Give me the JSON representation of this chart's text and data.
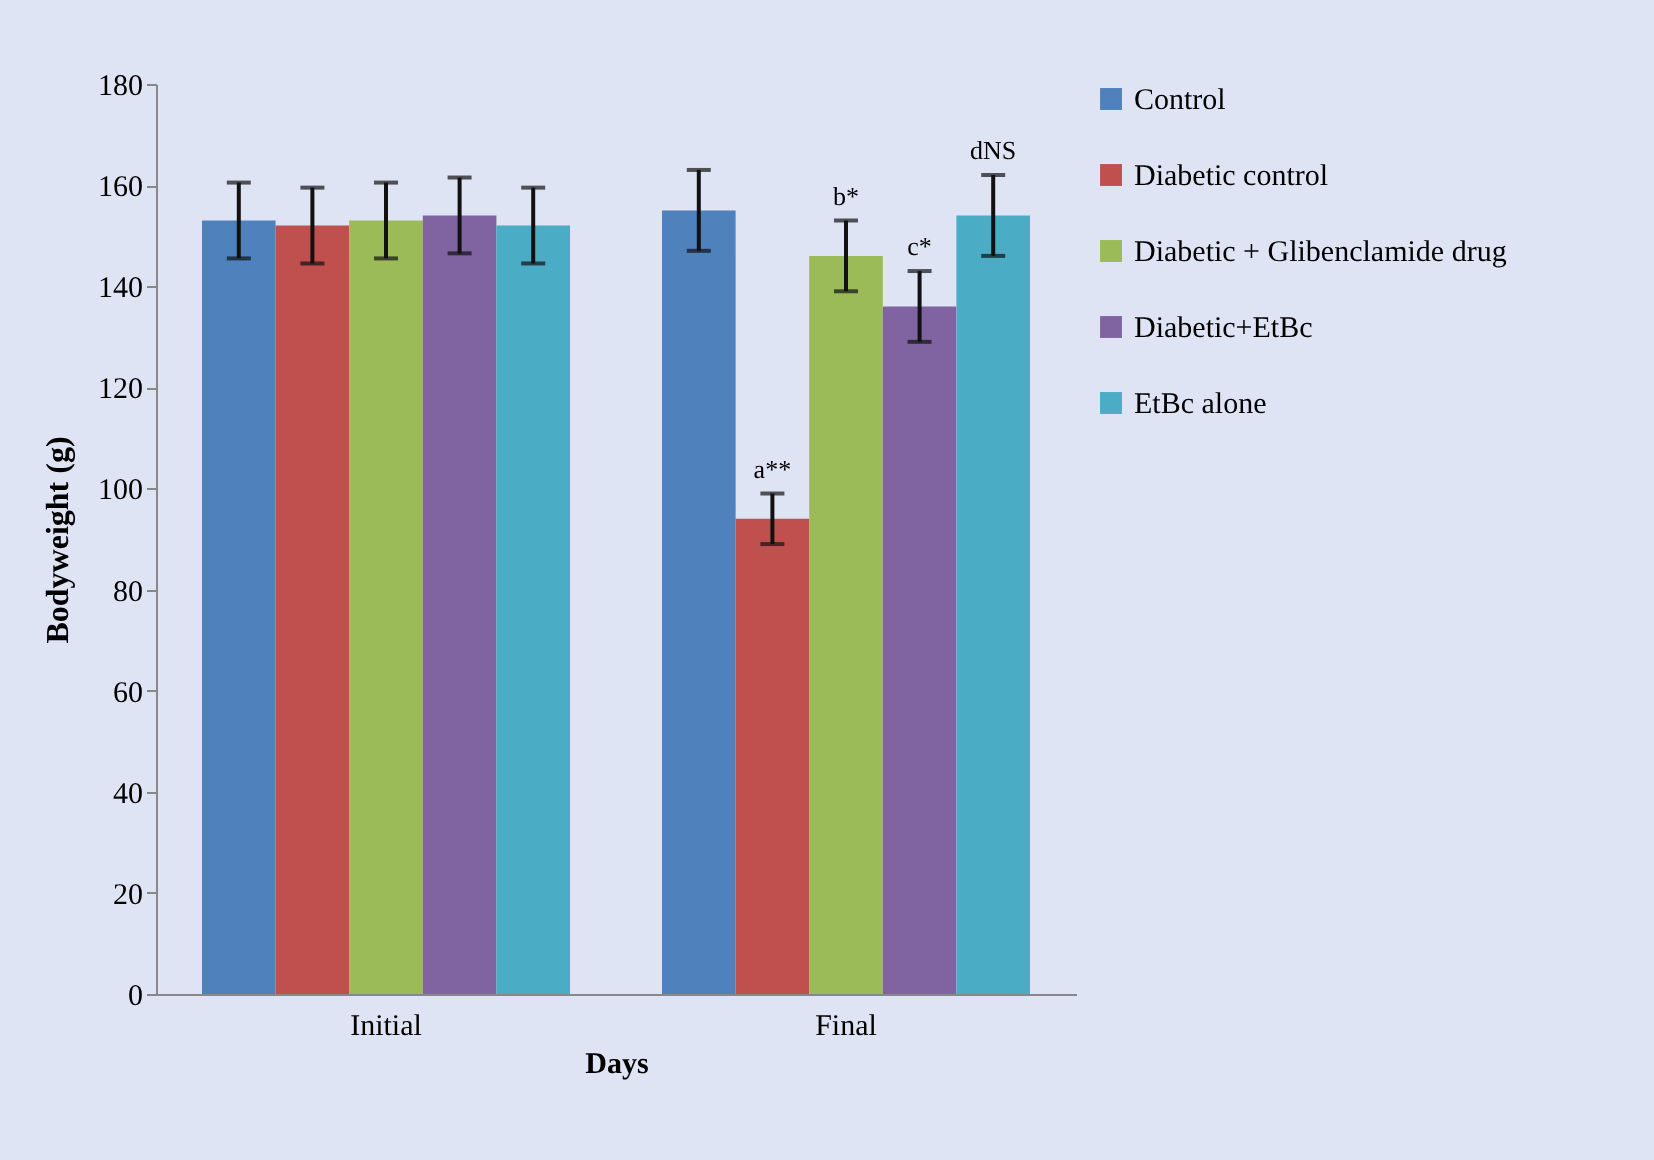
{
  "chart_data": {
    "type": "bar",
    "xlabel": "Days",
    "ylabel": "Bodyweight (g)",
    "categories": [
      "Initial",
      "Final"
    ],
    "ylim": [
      0,
      180
    ],
    "yticks": [
      0,
      20,
      40,
      60,
      80,
      100,
      120,
      140,
      160,
      180
    ],
    "grid": false,
    "legend": "right",
    "series": [
      {
        "name": "Control",
        "color": "#4f81bd",
        "values": [
          153,
          155
        ],
        "errors": [
          7.5,
          8
        ]
      },
      {
        "name": "Diabetic control",
        "color": "#c0504d",
        "values": [
          152,
          94
        ],
        "errors": [
          7.5,
          5
        ],
        "value_labels": [
          null,
          "a**"
        ]
      },
      {
        "name": "Diabetic + Glibenclamide drug",
        "color": "#9bbb59",
        "values": [
          153,
          146
        ],
        "errors": [
          7.5,
          7
        ],
        "value_labels": [
          null,
          "b*"
        ]
      },
      {
        "name": "Diabetic+EtBc",
        "color": "#8064a2",
        "values": [
          154,
          136
        ],
        "errors": [
          7.5,
          7
        ],
        "value_labels": [
          null,
          "c*"
        ]
      },
      {
        "name": "EtBc alone",
        "color": "#4bacc6",
        "values": [
          152,
          154
        ],
        "errors": [
          7.5,
          8
        ],
        "value_labels": [
          null,
          "dNS"
        ]
      }
    ]
  }
}
